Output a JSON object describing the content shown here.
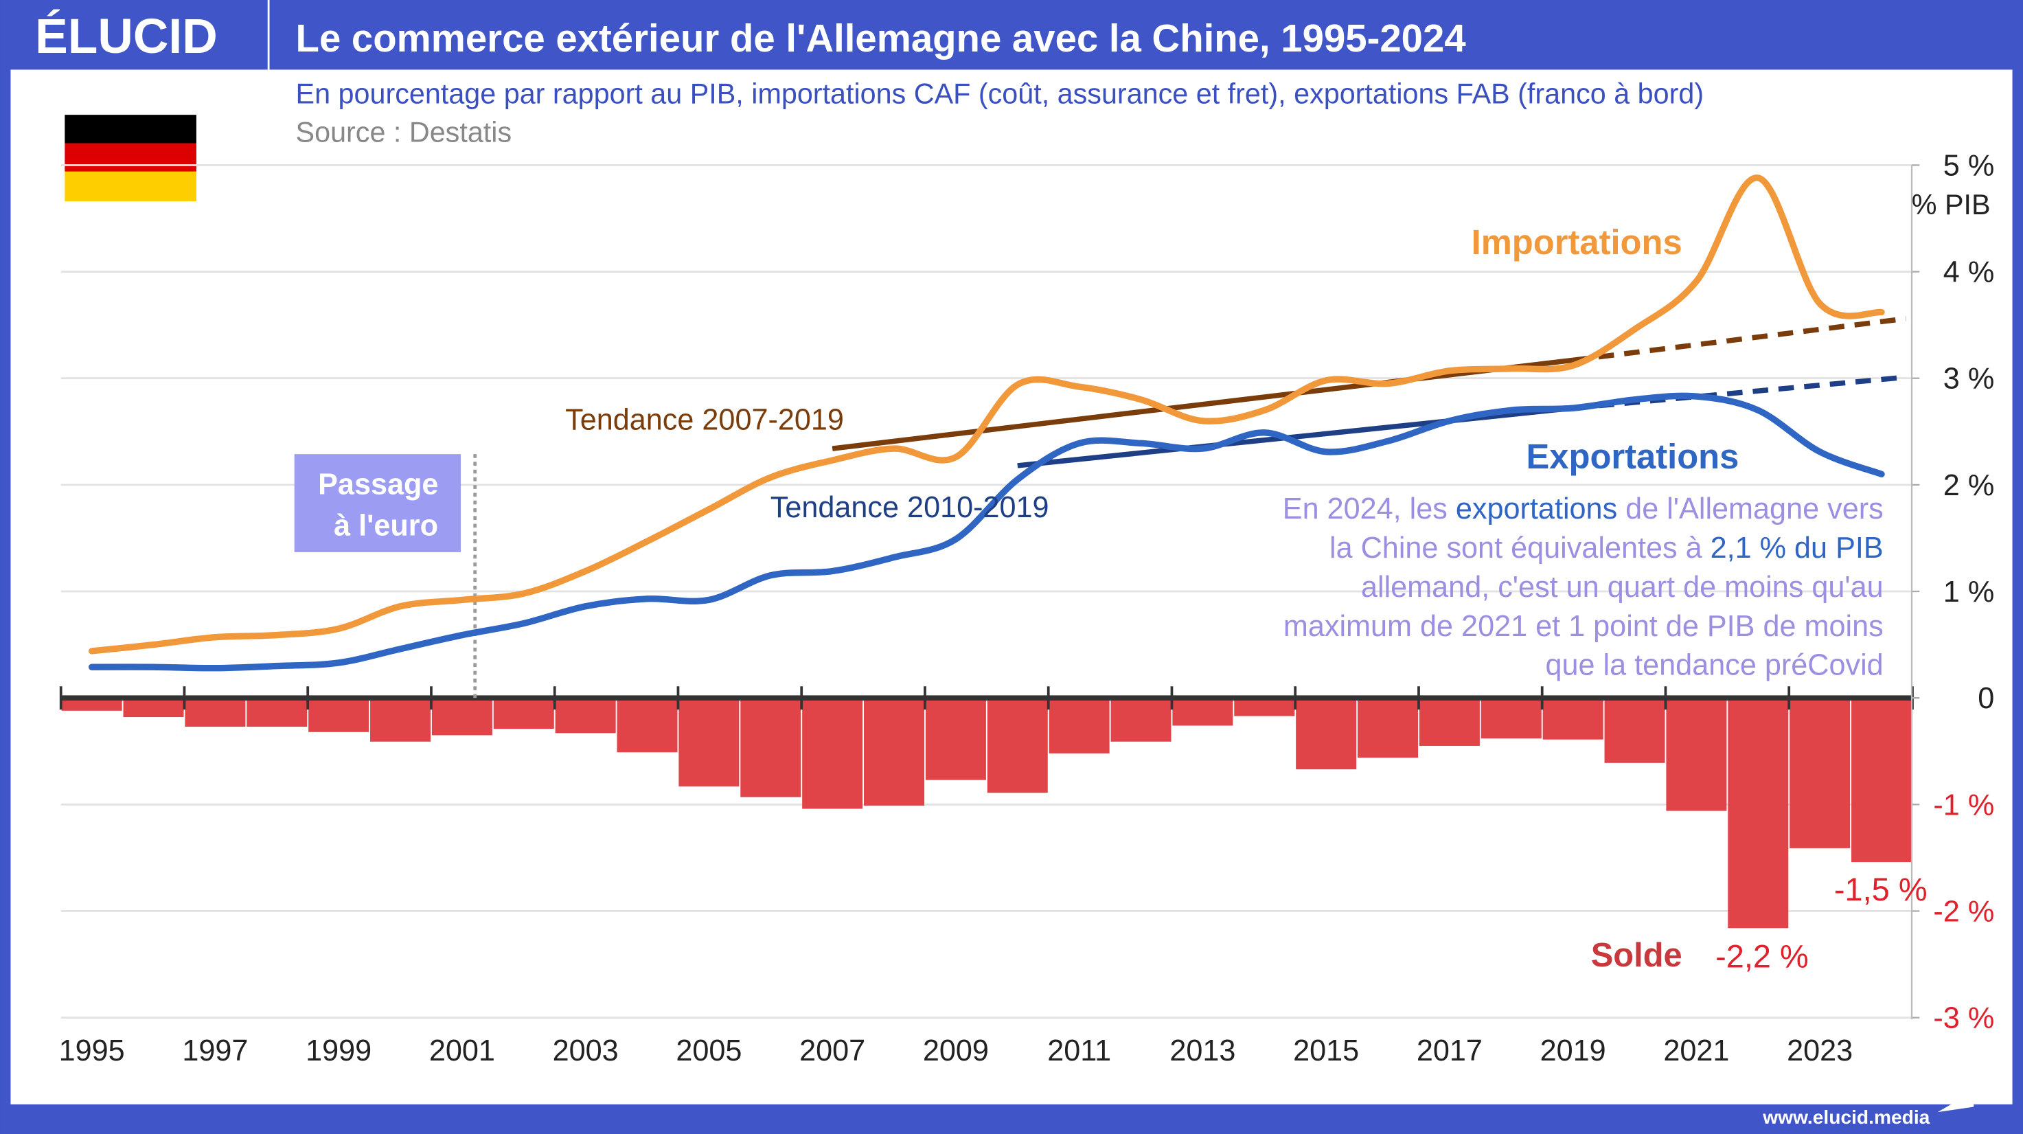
{
  "header": {
    "logo": "ÉLUCID",
    "title": "Le commerce extérieur de l'Allemagne avec la Chine, 1995-2024"
  },
  "subtitle": "En pourcentage par rapport au PIB, importations CAF (coût, assurance et fret), exportations FAB (franco à bord)",
  "source": "Source : Destatis",
  "footer": {
    "url": "www.elucid.media"
  },
  "flag": {
    "name": "germany-flag",
    "colors": [
      "#000000",
      "#dd0000",
      "#ffce00"
    ]
  },
  "colors": {
    "header": "#3f55c8",
    "imports": "#f0983a",
    "exports": "#2f65c3",
    "trend_imports": "#7a3c0a",
    "trend_exports": "#1e3f86",
    "balance": "#e04448",
    "annotation": "#9a8fe0",
    "euro_box": "#9b9cf2"
  },
  "chart_data": {
    "type": "line+bar",
    "x": [
      1995,
      1996,
      1997,
      1998,
      1999,
      2000,
      2001,
      2002,
      2003,
      2004,
      2005,
      2006,
      2007,
      2008,
      2009,
      2010,
      2011,
      2012,
      2013,
      2014,
      2015,
      2016,
      2017,
      2018,
      2019,
      2020,
      2021,
      2022,
      2023,
      2024
    ],
    "xticks": [
      "1995",
      "1997",
      "1999",
      "2001",
      "2003",
      "2005",
      "2007",
      "2009",
      "2011",
      "2013",
      "2015",
      "2017",
      "2019",
      "2021",
      "2023"
    ],
    "ylim": [
      -3,
      5
    ],
    "yticks": [
      {
        "v": 5,
        "label": "5 %"
      },
      {
        "v": 4,
        "label": "4 %"
      },
      {
        "v": 3,
        "label": "3 %"
      },
      {
        "v": 2,
        "label": "2 %"
      },
      {
        "v": 1,
        "label": "1 %"
      },
      {
        "v": 0,
        "label": "0"
      },
      {
        "v": -1,
        "label": "-1 %"
      },
      {
        "v": -2,
        "label": "-2 %"
      },
      {
        "v": -3,
        "label": "-3 %"
      }
    ],
    "yunit": "% PIB",
    "grid": true,
    "series": [
      {
        "name": "Importations",
        "type": "line",
        "values": [
          0.44,
          0.5,
          0.57,
          0.59,
          0.65,
          0.86,
          0.92,
          0.98,
          1.19,
          1.47,
          1.77,
          2.07,
          2.23,
          2.34,
          2.26,
          2.94,
          2.92,
          2.8,
          2.6,
          2.7,
          2.98,
          2.95,
          3.07,
          3.09,
          3.12,
          3.46,
          3.91,
          4.88,
          3.7,
          3.62
        ]
      },
      {
        "name": "Exportations",
        "type": "line",
        "values": [
          0.29,
          0.29,
          0.28,
          0.3,
          0.33,
          0.46,
          0.59,
          0.7,
          0.86,
          0.93,
          0.92,
          1.15,
          1.19,
          1.32,
          1.49,
          2.05,
          2.39,
          2.39,
          2.34,
          2.49,
          2.31,
          2.41,
          2.6,
          2.7,
          2.72,
          2.8,
          2.83,
          2.7,
          2.31,
          2.1
        ]
      },
      {
        "name": "Solde",
        "type": "bar",
        "values": [
          -0.12,
          -0.18,
          -0.27,
          -0.27,
          -0.32,
          -0.41,
          -0.35,
          -0.29,
          -0.33,
          -0.51,
          -0.83,
          -0.93,
          -1.04,
          -1.01,
          -0.77,
          -0.89,
          -0.52,
          -0.41,
          -0.26,
          -0.17,
          -0.67,
          -0.56,
          -0.45,
          -0.38,
          -0.39,
          -0.61,
          -1.06,
          -2.16,
          -1.41,
          -1.54
        ]
      }
    ],
    "trends": [
      {
        "name": "Tendance 2007-2019",
        "from": [
          2007,
          2.34
        ],
        "to": [
          2019,
          3.17
        ],
        "extended_to": [
          2024.5,
          3.56
        ]
      },
      {
        "name": "Tendance 2010-2019",
        "from": [
          2010,
          2.18
        ],
        "to": [
          2019,
          2.72
        ],
        "extended_to": [
          2024.5,
          3.01
        ]
      }
    ],
    "annotations": {
      "euro": [
        "Passage",
        "à l'euro"
      ],
      "euro_year": 2001,
      "label_2022": "-2,2 %",
      "label_2024": "-1,5 %",
      "note": [
        [
          {
            "t": "En 2024, les ",
            "hl": false
          },
          {
            "t": "exportations",
            "hl": true
          },
          {
            "t": " de l'Allemagne vers",
            "hl": false
          }
        ],
        [
          {
            "t": "la Chine sont équivalentes à ",
            "hl": false
          },
          {
            "t": "2,1 % du PIB",
            "hl": true
          }
        ],
        [
          {
            "t": "allemand, c'est un quart de moins qu'au",
            "hl": false
          }
        ],
        [
          {
            "t": "maximum de 2021 et 1 point de PIB de moins",
            "hl": false
          }
        ],
        [
          {
            "t": "que la tendance préCovid",
            "hl": false
          }
        ]
      ]
    }
  }
}
